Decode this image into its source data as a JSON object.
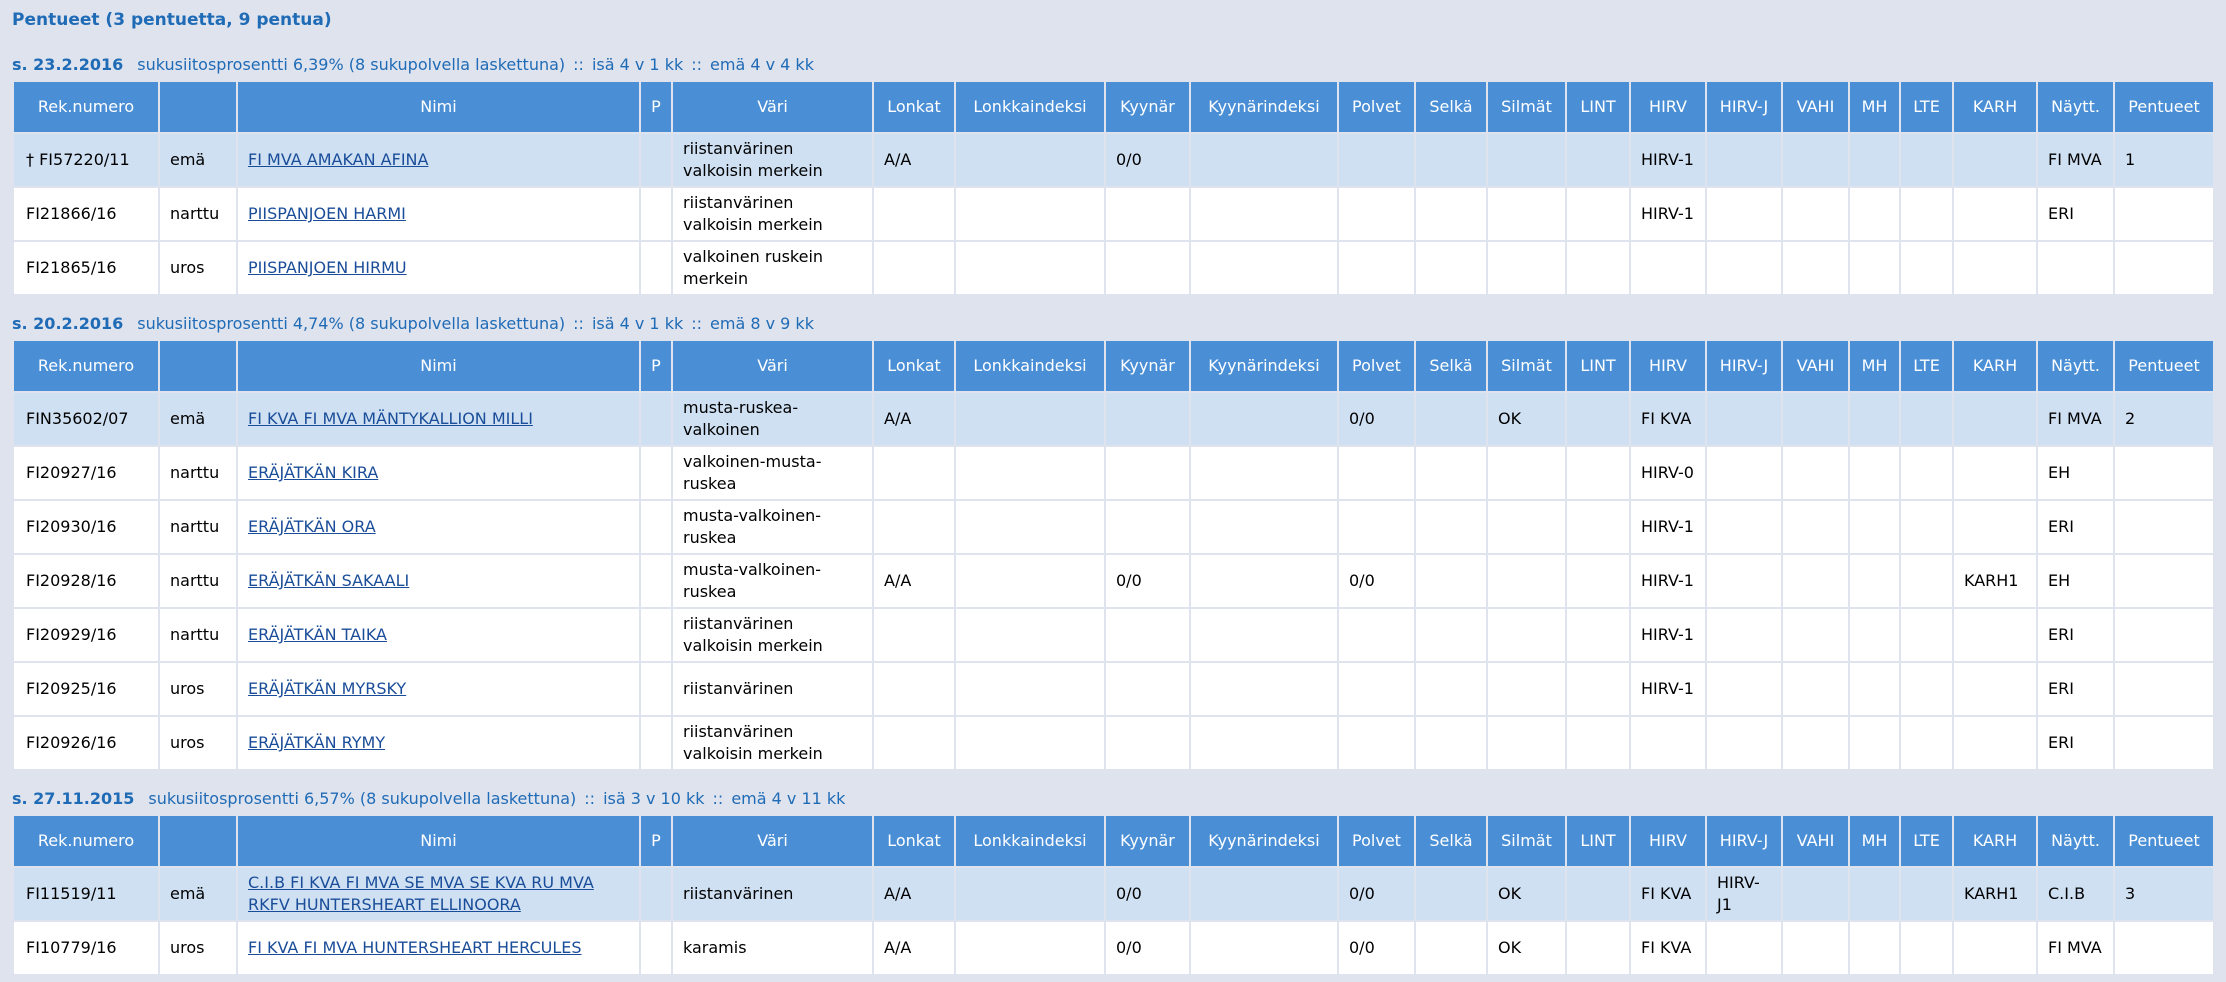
{
  "page_title": "Pentueet (3 pentuetta, 9 pentua)",
  "columns": [
    "Rek.numero",
    "",
    "Nimi",
    "P",
    "Väri",
    "Lonkat",
    "Lonkkaindeksi",
    "Kyynär",
    "Kyynärindeksi",
    "Polvet",
    "Selkä",
    "Silmät",
    "LINT",
    "HIRV",
    "HIRV-J",
    "VAHI",
    "MH",
    "LTE",
    "KARH",
    "Näytt.",
    "Pentueet"
  ],
  "colors": {
    "background": "#dfe3ee",
    "header": "#4a8fd6",
    "highlight_row": "#cfe0f3",
    "link": "#1a4d99",
    "heading": "#1f6bb6"
  },
  "litters": [
    {
      "date": "s. 23.2.2016",
      "inbreeding": "sukusiitosprosentti 6,39% (8 sukupolvella laskettuna)",
      "sire_age": "isä 4 v 1 kk",
      "dam_age": "emä 4 v 4 kk",
      "separator": "::",
      "rows": [
        [
          "† FI57220/11",
          "emä",
          "FI MVA AMAKAN AFINA",
          "",
          "riistanvärinen valkoisin merkein",
          "A/A",
          "",
          "0/0",
          "",
          "",
          "",
          "",
          "",
          "HIRV-1",
          "",
          "",
          "",
          "",
          "",
          "FI MVA",
          "1"
        ],
        [
          "FI21866/16",
          "narttu",
          "PIISPANJOEN HARMI",
          "",
          "riistanvärinen valkoisin merkein",
          "",
          "",
          "",
          "",
          "",
          "",
          "",
          "",
          "HIRV-1",
          "",
          "",
          "",
          "",
          "",
          "ERI",
          ""
        ],
        [
          "FI21865/16",
          "uros",
          "PIISPANJOEN HIRMU",
          "",
          "valkoinen ruskein merkein",
          "",
          "",
          "",
          "",
          "",
          "",
          "",
          "",
          "",
          "",
          "",
          "",
          "",
          "",
          "",
          ""
        ]
      ]
    },
    {
      "date": "s. 20.2.2016",
      "inbreeding": "sukusiitosprosentti 4,74% (8 sukupolvella laskettuna)",
      "sire_age": "isä 4 v 1 kk",
      "dam_age": "emä 8 v 9 kk",
      "separator": "::",
      "rows": [
        [
          "FIN35602/07",
          "emä",
          "FI KVA FI MVA MÄNTYKALLION MILLI",
          "",
          "musta-ruskea-valkoinen",
          "A/A",
          "",
          "",
          "",
          "0/0",
          "",
          "OK",
          "",
          "FI KVA",
          "",
          "",
          "",
          "",
          "",
          "FI MVA",
          "2"
        ],
        [
          "FI20927/16",
          "narttu",
          "ERÄJÄTKÄN KIRA",
          "",
          "valkoinen-musta-ruskea",
          "",
          "",
          "",
          "",
          "",
          "",
          "",
          "",
          "HIRV-0",
          "",
          "",
          "",
          "",
          "",
          "EH",
          ""
        ],
        [
          "FI20930/16",
          "narttu",
          "ERÄJÄTKÄN ORA",
          "",
          "musta-valkoinen-ruskea",
          "",
          "",
          "",
          "",
          "",
          "",
          "",
          "",
          "HIRV-1",
          "",
          "",
          "",
          "",
          "",
          "ERI",
          ""
        ],
        [
          "FI20928/16",
          "narttu",
          "ERÄJÄTKÄN SAKAALI",
          "",
          "musta-valkoinen-ruskea",
          "A/A",
          "",
          "0/0",
          "",
          "0/0",
          "",
          "",
          "",
          "HIRV-1",
          "",
          "",
          "",
          "",
          "KARH1",
          "EH",
          ""
        ],
        [
          "FI20929/16",
          "narttu",
          "ERÄJÄTKÄN TAIKA",
          "",
          "riistanvärinen valkoisin merkein",
          "",
          "",
          "",
          "",
          "",
          "",
          "",
          "",
          "HIRV-1",
          "",
          "",
          "",
          "",
          "",
          "ERI",
          ""
        ],
        [
          "FI20925/16",
          "uros",
          "ERÄJÄTKÄN MYRSKY",
          "",
          "riistanvärinen",
          "",
          "",
          "",
          "",
          "",
          "",
          "",
          "",
          "HIRV-1",
          "",
          "",
          "",
          "",
          "",
          "ERI",
          ""
        ],
        [
          "FI20926/16",
          "uros",
          "ERÄJÄTKÄN RYMY",
          "",
          "riistanvärinen valkoisin merkein",
          "",
          "",
          "",
          "",
          "",
          "",
          "",
          "",
          "",
          "",
          "",
          "",
          "",
          "",
          "ERI",
          ""
        ]
      ]
    },
    {
      "date": "s. 27.11.2015",
      "inbreeding": "sukusiitosprosentti 6,57% (8 sukupolvella laskettuna)",
      "sire_age": "isä 3 v 10 kk",
      "dam_age": "emä 4 v 11 kk",
      "separator": "::",
      "rows": [
        [
          "FI11519/11",
          "emä",
          "C.I.B FI KVA FI MVA SE MVA SE KVA RU MVA RKFV HUNTERSHEART ELLINOORA",
          "",
          "riistanvärinen",
          "A/A",
          "",
          "0/0",
          "",
          "0/0",
          "",
          "OK",
          "",
          "FI KVA",
          "HIRV-J1",
          "",
          "",
          "",
          "KARH1",
          "C.I.B",
          "3"
        ],
        [
          "FI10779/16",
          "uros",
          "FI KVA FI MVA HUNTERSHEART HERCULES",
          "",
          "karamis",
          "A/A",
          "",
          "0/0",
          "",
          "0/0",
          "",
          "OK",
          "",
          "FI KVA",
          "",
          "",
          "",
          "",
          "",
          "FI MVA",
          ""
        ]
      ]
    }
  ]
}
